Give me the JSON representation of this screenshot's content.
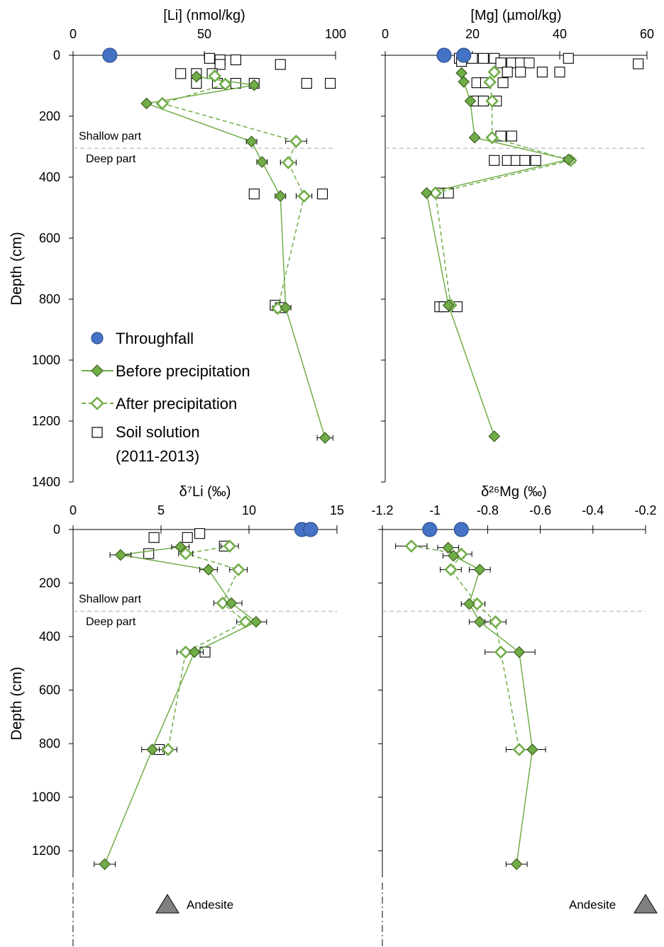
{
  "figure_text": {
    "shallow_label": "Shallow part",
    "deep_label": "Deep part",
    "ylabel": "Depth (cm)",
    "andesite_label": "Andesite",
    "legend": [
      {
        "label": "Throughfall",
        "marker": "circle"
      },
      {
        "label": "Before precipitation",
        "marker": "diamond-filled"
      },
      {
        "label": "After precipitation",
        "marker": "diamond-open"
      },
      {
        "label": "Soil solution",
        "label2": "(2011-2013)",
        "marker": "square"
      }
    ]
  },
  "colors": {
    "throughfall": "#4472C4",
    "throughfall_edge": "#2F4F8F",
    "before_fill": "#70AD47",
    "before_edge": "#3D5E22",
    "after": "#70AD47",
    "line": "#70AD47",
    "dashed_ref": "#aaaaaa",
    "andesite": "#808080"
  },
  "chart_data": [
    {
      "type": "scatter",
      "id": "li",
      "title": "[Li] (nmol/kg)",
      "xlim": [
        0,
        100
      ],
      "xticks": [
        0,
        50,
        100
      ],
      "ylim": [
        0,
        1400
      ],
      "yticks": [
        0,
        200,
        400,
        600,
        800,
        1000,
        1200,
        1400
      ],
      "ylabel": "Depth (cm)",
      "boundary_depth": 305,
      "throughfall": [
        {
          "x": 14,
          "y": 0
        }
      ],
      "before": [
        {
          "x": 47,
          "y": 70,
          "err": 0
        },
        {
          "x": 69,
          "y": 98,
          "err": 0
        },
        {
          "x": 28,
          "y": 158,
          "err": 0
        },
        {
          "x": 68,
          "y": 283,
          "err": 2
        },
        {
          "x": 72,
          "y": 350,
          "err": 2
        },
        {
          "x": 79,
          "y": 462,
          "err": 2
        },
        {
          "x": 81,
          "y": 828,
          "err": 2
        },
        {
          "x": 96,
          "y": 1255,
          "err": 3
        }
      ],
      "after": [
        {
          "x": 54,
          "y": 68,
          "err": 0
        },
        {
          "x": 58,
          "y": 95,
          "err": 0
        },
        {
          "x": 34,
          "y": 158,
          "err": 0
        },
        {
          "x": 85,
          "y": 282,
          "err": 4
        },
        {
          "x": 82,
          "y": 352,
          "err": 3
        },
        {
          "x": 88,
          "y": 462,
          "err": 3
        },
        {
          "x": 78,
          "y": 830,
          "err": 2
        }
      ],
      "soil_solution": [
        {
          "x": 52,
          "y": 10
        },
        {
          "x": 56,
          "y": 15
        },
        {
          "x": 62,
          "y": 15
        },
        {
          "x": 56,
          "y": 30
        },
        {
          "x": 79,
          "y": 30
        },
        {
          "x": 41,
          "y": 60
        },
        {
          "x": 47,
          "y": 60
        },
        {
          "x": 53,
          "y": 60
        },
        {
          "x": 47,
          "y": 92
        },
        {
          "x": 55,
          "y": 92
        },
        {
          "x": 62,
          "y": 92
        },
        {
          "x": 69,
          "y": 92
        },
        {
          "x": 89,
          "y": 92
        },
        {
          "x": 98,
          "y": 92
        },
        {
          "x": 69,
          "y": 455
        },
        {
          "x": 95,
          "y": 455
        },
        {
          "x": 77,
          "y": 820
        },
        {
          "x": 79,
          "y": 828
        }
      ]
    },
    {
      "type": "scatter",
      "id": "mg",
      "title": "[Mg] (µmol/kg)",
      "xlim": [
        0,
        60
      ],
      "xticks": [
        0,
        20,
        40,
        60
      ],
      "ylim": [
        0,
        1400
      ],
      "yticks": [
        0,
        200,
        400,
        600,
        800,
        1000,
        1200,
        1400
      ],
      "boundary_depth": 305,
      "throughfall": [
        {
          "x": 13.5,
          "y": 0
        },
        {
          "x": 18,
          "y": 0
        }
      ],
      "before": [
        {
          "x": 17.5,
          "y": 58,
          "err": 0
        },
        {
          "x": 18,
          "y": 87,
          "err": 0
        },
        {
          "x": 19.5,
          "y": 150,
          "err": 0
        },
        {
          "x": 20.5,
          "y": 270,
          "err": 0
        },
        {
          "x": 42,
          "y": 342,
          "err": 1
        },
        {
          "x": 9.5,
          "y": 452,
          "err": 0
        },
        {
          "x": 14.5,
          "y": 820,
          "err": 0
        },
        {
          "x": 25,
          "y": 1250,
          "err": 0
        }
      ],
      "after": [
        {
          "x": 25,
          "y": 55,
          "err": 0
        },
        {
          "x": 24,
          "y": 88,
          "err": 0
        },
        {
          "x": 24.5,
          "y": 150,
          "err": 0
        },
        {
          "x": 24.5,
          "y": 270,
          "err": 0
        },
        {
          "x": 42.5,
          "y": 345,
          "err": 1
        },
        {
          "x": 11.5,
          "y": 452,
          "err": 0
        },
        {
          "x": 15,
          "y": 820,
          "err": 0
        }
      ],
      "soil_solution": [
        {
          "x": 17,
          "y": 10
        },
        {
          "x": 20,
          "y": 10
        },
        {
          "x": 22.5,
          "y": 10
        },
        {
          "x": 25,
          "y": 10
        },
        {
          "x": 17.5,
          "y": 20
        },
        {
          "x": 26.5,
          "y": 25
        },
        {
          "x": 29,
          "y": 25
        },
        {
          "x": 31,
          "y": 25
        },
        {
          "x": 33,
          "y": 25
        },
        {
          "x": 42,
          "y": 10
        },
        {
          "x": 58,
          "y": 28
        },
        {
          "x": 28,
          "y": 55
        },
        {
          "x": 31,
          "y": 55
        },
        {
          "x": 36,
          "y": 55
        },
        {
          "x": 40,
          "y": 55
        },
        {
          "x": 21,
          "y": 90
        },
        {
          "x": 23,
          "y": 90
        },
        {
          "x": 27,
          "y": 90
        },
        {
          "x": 21,
          "y": 150
        },
        {
          "x": 22.5,
          "y": 150
        },
        {
          "x": 25.5,
          "y": 150
        },
        {
          "x": 26.5,
          "y": 265
        },
        {
          "x": 29,
          "y": 265
        },
        {
          "x": 25,
          "y": 345
        },
        {
          "x": 28,
          "y": 345
        },
        {
          "x": 30,
          "y": 345
        },
        {
          "x": 32,
          "y": 345
        },
        {
          "x": 34.5,
          "y": 345
        },
        {
          "x": 12.5,
          "y": 452
        },
        {
          "x": 14.5,
          "y": 452
        },
        {
          "x": 12.5,
          "y": 825
        },
        {
          "x": 13.5,
          "y": 825
        },
        {
          "x": 16.5,
          "y": 825
        }
      ]
    },
    {
      "type": "scatter",
      "id": "d7li",
      "title": "δ⁷Li (‰)",
      "xlim": [
        0,
        15
      ],
      "xticks": [
        0,
        5,
        10,
        15
      ],
      "ylim": [
        0,
        1300
      ],
      "yticks": [
        0,
        200,
        400,
        600,
        800,
        1000,
        1200
      ],
      "ylabel": "Depth (cm)",
      "boundary_depth": 305,
      "throughfall": [
        {
          "x": 13.0,
          "y": 0
        },
        {
          "x": 13.5,
          "y": 0
        }
      ],
      "before": [
        {
          "x": 6.1,
          "y": 65,
          "err": 0.5
        },
        {
          "x": 2.7,
          "y": 95,
          "err": 0.6
        },
        {
          "x": 7.7,
          "y": 150,
          "err": 0.5
        },
        {
          "x": 9.0,
          "y": 275,
          "err": 0.6
        },
        {
          "x": 10.4,
          "y": 345,
          "err": 0.6
        },
        {
          "x": 6.9,
          "y": 458,
          "err": 0.5
        },
        {
          "x": 4.5,
          "y": 822,
          "err": 0.6
        },
        {
          "x": 1.8,
          "y": 1250,
          "err": 0.6
        }
      ],
      "after": [
        {
          "x": 8.9,
          "y": 62,
          "err": 0.5
        },
        {
          "x": 6.4,
          "y": 90,
          "err": 0.4
        },
        {
          "x": 9.4,
          "y": 150,
          "err": 0.5
        },
        {
          "x": 8.5,
          "y": 275,
          "err": 0.5
        },
        {
          "x": 9.8,
          "y": 345,
          "err": 0.5
        },
        {
          "x": 6.4,
          "y": 458,
          "err": 0.5
        },
        {
          "x": 5.4,
          "y": 822,
          "err": 0.5
        }
      ],
      "soil_solution": [
        {
          "x": 4.6,
          "y": 30
        },
        {
          "x": 6.5,
          "y": 30
        },
        {
          "x": 7.2,
          "y": 15
        },
        {
          "x": 8.6,
          "y": 62
        },
        {
          "x": 4.3,
          "y": 90
        },
        {
          "x": 7.5,
          "y": 458
        },
        {
          "x": 4.9,
          "y": 822
        }
      ]
    },
    {
      "type": "scatter",
      "id": "d26mg",
      "title": "δ²⁶Mg (‰)",
      "xlim": [
        -1.2,
        -0.2
      ],
      "xticks": [
        -1.2,
        -1.0,
        -0.8,
        -0.6,
        -0.4,
        -0.2
      ],
      "ylim": [
        0,
        1300
      ],
      "yticks": [
        0,
        200,
        400,
        600,
        800,
        1000,
        1200
      ],
      "boundary_depth": 305,
      "throughfall": [
        {
          "x": -1.02,
          "y": 0
        },
        {
          "x": -0.9,
          "y": 0
        }
      ],
      "before": [
        {
          "x": -0.95,
          "y": 68,
          "err": 0.04
        },
        {
          "x": -0.93,
          "y": 98,
          "err": 0.04
        },
        {
          "x": -0.83,
          "y": 150,
          "err": 0.04
        },
        {
          "x": -0.87,
          "y": 278,
          "err": 0.03
        },
        {
          "x": -0.83,
          "y": 345,
          "err": 0.04
        },
        {
          "x": -0.68,
          "y": 458,
          "err": 0.06
        },
        {
          "x": -0.63,
          "y": 822,
          "err": 0.05
        },
        {
          "x": -0.69,
          "y": 1250,
          "err": 0.04
        }
      ],
      "after": [
        {
          "x": -1.09,
          "y": 62,
          "err": 0.06
        },
        {
          "x": -0.9,
          "y": 92,
          "err": 0.04
        },
        {
          "x": -0.94,
          "y": 150,
          "err": 0.04
        },
        {
          "x": -0.84,
          "y": 278,
          "err": 0.03
        },
        {
          "x": -0.77,
          "y": 345,
          "err": 0.04
        },
        {
          "x": -0.75,
          "y": 458,
          "err": 0.06
        },
        {
          "x": -0.68,
          "y": 822,
          "err": 0.05
        }
      ],
      "soil_solution": []
    }
  ]
}
